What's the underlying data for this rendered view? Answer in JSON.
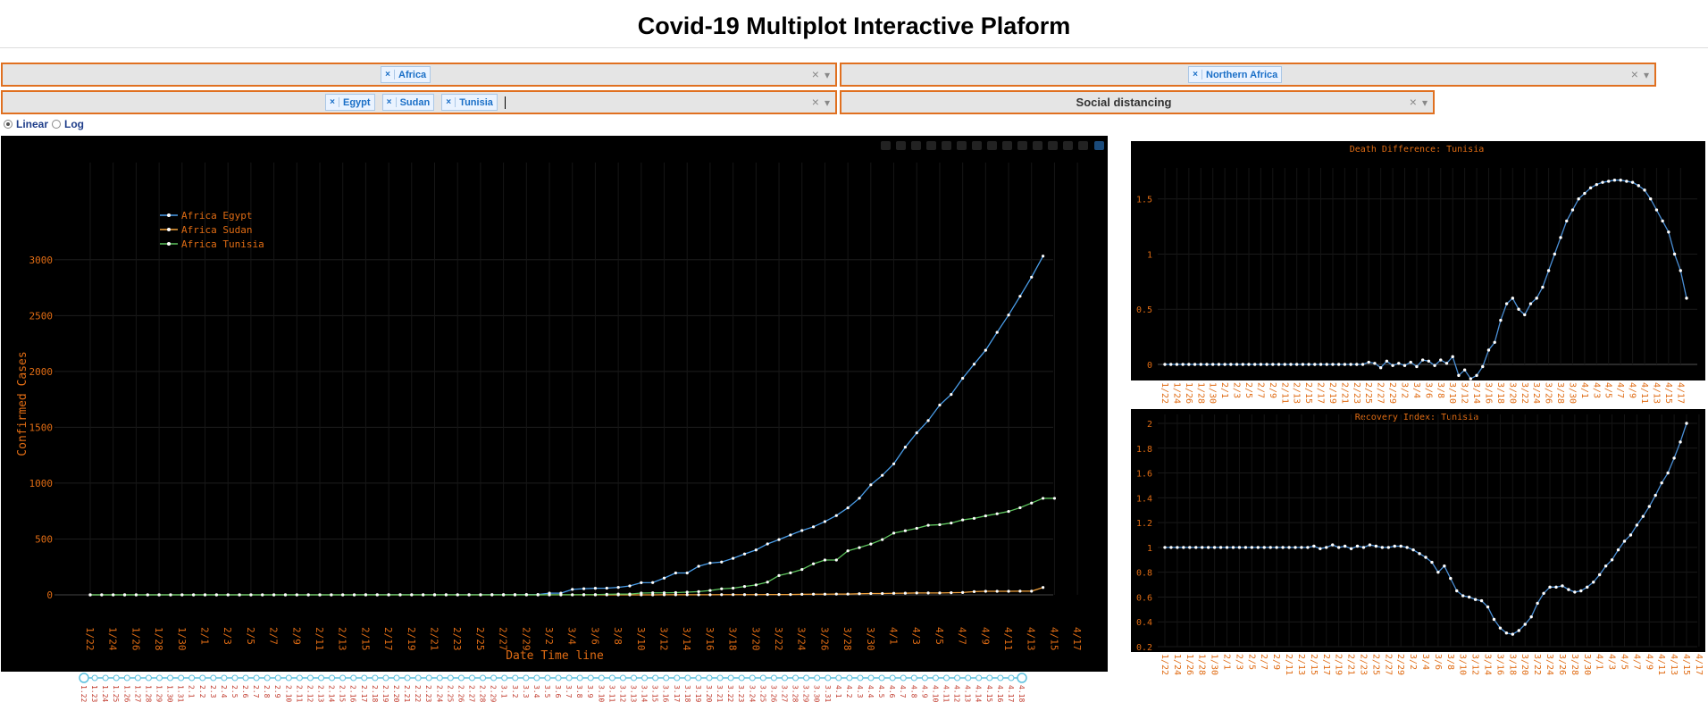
{
  "header": {
    "title": "Covid-19 Multiplot Interactive Plaform"
  },
  "filters": {
    "continent": {
      "selected": [
        "Africa"
      ]
    },
    "region": {
      "selected": [
        "Northern Africa"
      ]
    },
    "countries": {
      "selected": [
        "Egypt",
        "Sudan",
        "Tunisia"
      ]
    },
    "measure": {
      "value": "Social distancing"
    },
    "clear_glyph": "×",
    "arrow_glyph": "▾"
  },
  "scale": {
    "options": [
      "Linear",
      "Log"
    ],
    "selected": "Linear"
  },
  "colors": {
    "text": "#e06c14",
    "egypt": "#4a9eea",
    "sudan": "#f2a23c",
    "tunisia": "#5ec45e",
    "diff_line": "#4a8fd6",
    "panel_bg": "#000000",
    "accent_border": "#e07020"
  },
  "chart_data": [
    {
      "type": "line",
      "xlabel": "Date Time line",
      "ylabel": "Confirmed Cases",
      "ylim": [
        0,
        3000
      ],
      "yticks": [
        0,
        500,
        1000,
        1500,
        2000,
        2500,
        3000
      ],
      "legend_position": "top-left",
      "grid": true,
      "x_tick_labels": [
        "1/22",
        "1/24",
        "1/26",
        "1/28",
        "1/30",
        "2/1",
        "2/3",
        "2/5",
        "2/7",
        "2/9",
        "2/11",
        "2/13",
        "2/15",
        "2/17",
        "2/19",
        "2/21",
        "2/23",
        "2/25",
        "2/27",
        "2/29",
        "3/2",
        "3/4",
        "3/6",
        "3/8",
        "3/10",
        "3/12",
        "3/14",
        "3/16",
        "3/18",
        "3/20",
        "3/22",
        "3/24",
        "3/26",
        "3/28",
        "3/30",
        "4/1",
        "4/3",
        "4/5",
        "4/7",
        "4/9",
        "4/11",
        "4/13",
        "4/15",
        "4/17"
      ],
      "series": [
        {
          "name": "Africa Egypt",
          "values": [
            0,
            0,
            0,
            0,
            0,
            0,
            0,
            0,
            0,
            0,
            0,
            0,
            0,
            0,
            0,
            0,
            0,
            0,
            0,
            0,
            0,
            0,
            0,
            0,
            1,
            1,
            1,
            1,
            1,
            1,
            1,
            1,
            1,
            1,
            1,
            2,
            2,
            2,
            3,
            3,
            15,
            15,
            49,
            55,
            59,
            60,
            67,
            80,
            109,
            110,
            150,
            196,
            196,
            256,
            285,
            294,
            327,
            366,
            402,
            456,
            495,
            536,
            576,
            609,
            656,
            710,
            779,
            865,
            985,
            1070,
            1173,
            1322,
            1450,
            1560,
            1699,
            1794,
            1939,
            2065,
            2190,
            2350,
            2505,
            2673,
            2844,
            3032
          ]
        },
        {
          "name": "Africa Sudan",
          "values": [
            0,
            0,
            0,
            0,
            0,
            0,
            0,
            0,
            0,
            0,
            0,
            0,
            0,
            0,
            0,
            0,
            0,
            0,
            0,
            0,
            0,
            0,
            0,
            0,
            0,
            0,
            0,
            0,
            0,
            0,
            0,
            0,
            0,
            0,
            0,
            0,
            0,
            0,
            0,
            0,
            0,
            0,
            0,
            0,
            0,
            0,
            0,
            0,
            0,
            0,
            1,
            1,
            1,
            1,
            1,
            2,
            2,
            2,
            2,
            3,
            3,
            3,
            5,
            6,
            6,
            7,
            7,
            10,
            12,
            12,
            14,
            15,
            17,
            17,
            17,
            19,
            21,
            29,
            32,
            32,
            32,
            33,
            33,
            66
          ]
        },
        {
          "name": "Africa Tunisia",
          "values": [
            0,
            0,
            0,
            0,
            0,
            0,
            0,
            0,
            0,
            0,
            0,
            0,
            0,
            0,
            0,
            0,
            0,
            0,
            0,
            0,
            0,
            0,
            0,
            0,
            0,
            0,
            0,
            0,
            0,
            0,
            0,
            0,
            0,
            0,
            0,
            0,
            0,
            0,
            0,
            0,
            1,
            1,
            1,
            2,
            2,
            5,
            7,
            7,
            16,
            18,
            18,
            20,
            24,
            29,
            39,
            54,
            60,
            75,
            89,
            114,
            173,
            197,
            227,
            278,
            312,
            312,
            394,
            423,
            455,
            495,
            553,
            574,
            596,
            623,
            628,
            643,
            671,
            685,
            707,
            726,
            747,
            780,
            822,
            864,
            864
          ]
        }
      ]
    },
    {
      "type": "line",
      "title": "Death Difference: Tunisia",
      "ylim": [
        0,
        1.7
      ],
      "yticks": [
        0,
        0.5,
        1,
        1.5
      ],
      "ytick_labels": [
        "0",
        "0.5",
        "1",
        "1.5"
      ],
      "x_tick_labels": [
        "1/22",
        "1/24",
        "1/26",
        "1/28",
        "1/30",
        "2/1",
        "2/3",
        "2/5",
        "2/7",
        "2/9",
        "2/11",
        "2/13",
        "2/15",
        "2/17",
        "2/19",
        "2/21",
        "2/23",
        "2/25",
        "2/27",
        "2/29",
        "3/2",
        "3/4",
        "3/6",
        "3/8",
        "3/10",
        "3/12",
        "3/14",
        "3/16",
        "3/18",
        "3/20",
        "3/22",
        "3/24",
        "3/26",
        "3/28",
        "3/30",
        "4/1",
        "4/3",
        "4/5",
        "4/7",
        "4/9",
        "4/11",
        "4/13",
        "4/15",
        "4/17"
      ],
      "series": [
        {
          "name": "Tunisia",
          "values": [
            0,
            0,
            0,
            0,
            0,
            0,
            0,
            0,
            0,
            0,
            0,
            0,
            0,
            0,
            0,
            0,
            0,
            0,
            0,
            0,
            0,
            0,
            0,
            0,
            0,
            0,
            0,
            0,
            0,
            0,
            0,
            0,
            0,
            0,
            0.02,
            0.01,
            -0.03,
            0.03,
            -0.01,
            0.01,
            -0.01,
            0.02,
            -0.02,
            0.04,
            0.03,
            -0.01,
            0.04,
            0.01,
            0.07,
            -0.1,
            -0.05,
            -0.13,
            -0.1,
            -0.02,
            0.13,
            0.2,
            0.4,
            0.55,
            0.6,
            0.5,
            0.45,
            0.55,
            0.6,
            0.7,
            0.85,
            1.0,
            1.15,
            1.3,
            1.4,
            1.5,
            1.55,
            1.6,
            1.63,
            1.65,
            1.66,
            1.67,
            1.67,
            1.66,
            1.65,
            1.62,
            1.58,
            1.5,
            1.4,
            1.3,
            1.2,
            1.0,
            0.85,
            0.6
          ]
        }
      ]
    },
    {
      "type": "line",
      "title": "Recovery Index: Tunisia",
      "ylim": [
        0.2,
        2
      ],
      "yticks": [
        0.2,
        0.4,
        0.6,
        0.8,
        1,
        1.2,
        1.4,
        1.6,
        1.8,
        2
      ],
      "ytick_labels": [
        "0.2",
        "0.4",
        "0.6",
        "0.8",
        "1",
        "1.2",
        "1.4",
        "1.6",
        "1.8",
        "2"
      ],
      "x_tick_labels": [
        "1/22",
        "1/24",
        "1/26",
        "1/28",
        "1/30",
        "2/1",
        "2/3",
        "2/5",
        "2/7",
        "2/9",
        "2/11",
        "2/13",
        "2/15",
        "2/17",
        "2/19",
        "2/21",
        "2/23",
        "2/25",
        "2/27",
        "2/29",
        "3/2",
        "3/4",
        "3/6",
        "3/8",
        "3/10",
        "3/12",
        "3/14",
        "3/16",
        "3/18",
        "3/20",
        "3/22",
        "3/24",
        "3/26",
        "3/28",
        "3/30",
        "4/1",
        "4/3",
        "4/5",
        "4/7",
        "4/9",
        "4/11",
        "4/13",
        "4/15",
        "4/17"
      ],
      "series": [
        {
          "name": "Tunisia",
          "values": [
            1,
            1,
            1,
            1,
            1,
            1,
            1,
            1,
            1,
            1,
            1,
            1,
            1,
            1,
            1,
            1,
            1,
            1,
            1,
            1,
            1,
            1,
            1,
            1,
            1.01,
            0.99,
            1.0,
            1.02,
            1.0,
            1.01,
            0.99,
            1.01,
            1.0,
            1.02,
            1.01,
            1.0,
            1.0,
            1.01,
            1.01,
            1.0,
            0.98,
            0.95,
            0.92,
            0.88,
            0.8,
            0.85,
            0.75,
            0.65,
            0.61,
            0.6,
            0.58,
            0.57,
            0.52,
            0.42,
            0.35,
            0.31,
            0.3,
            0.33,
            0.38,
            0.44,
            0.55,
            0.63,
            0.68,
            0.68,
            0.69,
            0.66,
            0.64,
            0.65,
            0.68,
            0.72,
            0.78,
            0.85,
            0.9,
            0.98,
            1.05,
            1.1,
            1.18,
            1.25,
            1.33,
            1.42,
            1.52,
            1.6,
            1.72,
            1.85,
            2.0
          ]
        }
      ]
    }
  ],
  "range_slider": {
    "tick_labels": [
      "1.22",
      "1.23",
      "1.24",
      "1.25",
      "1.26",
      "1.27",
      "1.28",
      "1.29",
      "1.30",
      "1.31",
      "2.1",
      "2.2",
      "2.3",
      "2.4",
      "2.5",
      "2.6",
      "2.7",
      "2.8",
      "2.9",
      "2.10",
      "2.11",
      "2.12",
      "2.13",
      "2.14",
      "2.15",
      "2.16",
      "2.17",
      "2.18",
      "2.19",
      "2.20",
      "2.21",
      "2.22",
      "2.23",
      "2.24",
      "2.25",
      "2.26",
      "2.27",
      "2.28",
      "2.29",
      "3.1",
      "3.2",
      "3.3",
      "3.4",
      "3.5",
      "3.6",
      "3.7",
      "3.8",
      "3.9",
      "3.10",
      "3.11",
      "3.12",
      "3.13",
      "3.14",
      "3.15",
      "3.16",
      "3.17",
      "3.18",
      "3.19",
      "3.20",
      "3.21",
      "3.22",
      "3.23",
      "3.24",
      "3.25",
      "3.26",
      "3.27",
      "3.28",
      "3.29",
      "3.30",
      "3.31",
      "4.1",
      "4.2",
      "4.3",
      "4.4",
      "4.5",
      "4.6",
      "4.7",
      "4.8",
      "4.9",
      "4.10",
      "4.11",
      "4.12",
      "4.13",
      "4.14",
      "4.15",
      "4.16",
      "4.17",
      "4.18"
    ]
  }
}
